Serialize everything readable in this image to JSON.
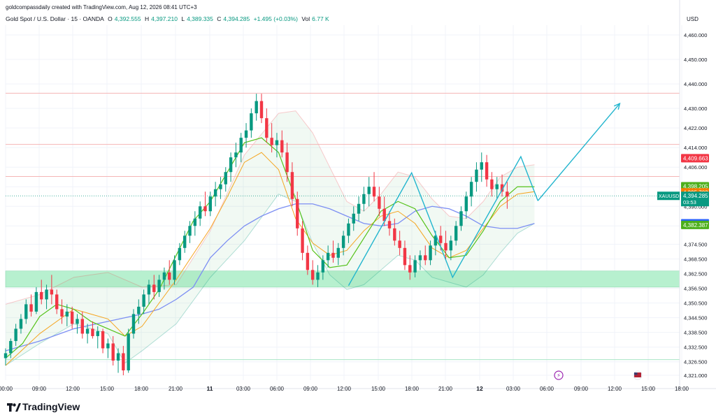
{
  "header": {
    "credit": "goldcompassdaily created with TradingView.com, Aug 12, 2026 08:41 UTC+3",
    "symbol": "Gold Spot / U.S. Dollar · 15 · OANDA",
    "o_label": "O",
    "o_value": "4,392.555",
    "h_label": "H",
    "h_value": "4,397.210",
    "l_label": "L",
    "l_value": "4,389.335",
    "c_label": "C",
    "c_value": "4,394.285",
    "change": "+1.495 (+0.03%)",
    "vol_label": "Vol",
    "vol_value": "6.77 K"
  },
  "brand": {
    "name": "TradingView"
  },
  "colors": {
    "up": "#089981",
    "down": "#f23645",
    "trend": "#22b5ce",
    "ma_blue": "#7d8ff3",
    "ma_green": "#55c21a",
    "ma_orange": "#f5a623",
    "zone": "#b7f0cf",
    "resistance": "#f5b5b5",
    "support": "#a8e6c5"
  },
  "chart_data": {
    "type": "candlestick",
    "currency_label": "USD",
    "yaxis_ticks": [
      "4,460.000",
      "4,450.000",
      "4,440.000",
      "4,430.000",
      "4,422.000",
      "4,414.000",
      "4,406.000",
      "4,398.000",
      "4,390.000",
      "4,382.000",
      "4,374.500",
      "4,368.500",
      "4,362.500",
      "4,356.500",
      "4,350.500",
      "4,344.500",
      "4,338.500",
      "4,332.500",
      "4,326.500",
      "4,321.000"
    ],
    "xaxis_ticks": [
      "00:00",
      "09:00",
      "12:00",
      "15:00",
      "18:00",
      "21:00",
      "11",
      "03:00",
      "06:00",
      "09:00",
      "12:00",
      "15:00",
      "18:00",
      "21:00",
      "12",
      "03:00",
      "06:00",
      "09:00",
      "12:00",
      "15:00",
      "18:00"
    ],
    "ylim": [
      4319,
      4464
    ],
    "price_labels": [
      {
        "text": "4,409.663",
        "value": 4409.663,
        "color": "#f23645"
      },
      {
        "text": "4,398.205",
        "value": 4398.205,
        "color": "#4caf1a"
      },
      {
        "text": "4,395.703",
        "value": 4395.703,
        "color": "#f57c00"
      },
      {
        "text": "4,383.062",
        "value": 4383.062,
        "color": "#2962ff"
      },
      {
        "text": "4,382.387",
        "value": 4382.387,
        "color": "#4caf1a"
      }
    ],
    "current_label": {
      "symbol": "XAUUSD",
      "price": "4,394.285",
      "timer": "03:53",
      "value": 4394.285
    },
    "resistance_lines": [
      4436.2,
      4415.3,
      4402.2
    ],
    "support_line": 4327.4,
    "demand_zone": [
      4357.0,
      4363.6
    ],
    "zigzag": [
      [
        20.1,
        4357.6
      ],
      [
        23.8,
        4403.7
      ],
      [
        26.2,
        4361.0
      ],
      [
        30.2,
        4410.3
      ],
      [
        31.2,
        4392.3
      ]
    ],
    "projection_arrow": [
      [
        31.2,
        4392.3
      ],
      [
        36.0,
        4432.0
      ]
    ],
    "bands_upper": [
      [
        0,
        4350
      ],
      [
        2,
        4354
      ],
      [
        4,
        4361
      ],
      [
        6,
        4363
      ],
      [
        8,
        4357
      ],
      [
        10,
        4358
      ],
      [
        12,
        4380
      ],
      [
        14,
        4411
      ],
      [
        16,
        4428
      ],
      [
        17,
        4429
      ],
      [
        18,
        4420
      ],
      [
        19,
        4406
      ],
      [
        20,
        4392
      ],
      [
        21,
        4388
      ],
      [
        22,
        4395
      ],
      [
        23,
        4404
      ],
      [
        24,
        4402
      ],
      [
        25,
        4393
      ],
      [
        26,
        4386
      ],
      [
        27,
        4385
      ],
      [
        28,
        4392
      ],
      [
        29,
        4402
      ],
      [
        30,
        4406
      ],
      [
        31,
        4407
      ]
    ],
    "bands_lower": [
      [
        0,
        4325
      ],
      [
        2,
        4334
      ],
      [
        4,
        4342
      ],
      [
        6,
        4338
      ],
      [
        7,
        4326
      ],
      [
        8,
        4331
      ],
      [
        10,
        4342
      ],
      [
        12,
        4361
      ],
      [
        14,
        4376
      ],
      [
        16,
        4395
      ],
      [
        17,
        4392
      ],
      [
        18,
        4375
      ],
      [
        19,
        4362
      ],
      [
        20,
        4356
      ],
      [
        21,
        4358
      ],
      [
        22,
        4364
      ],
      [
        23,
        4370
      ],
      [
        24,
        4368
      ],
      [
        25,
        4361
      ],
      [
        26,
        4359
      ],
      [
        27,
        4357
      ],
      [
        28,
        4362
      ],
      [
        29,
        4371
      ],
      [
        30,
        4379
      ],
      [
        31,
        4383
      ]
    ],
    "ma_green": [
      [
        0,
        4328
      ],
      [
        1,
        4334
      ],
      [
        2,
        4345
      ],
      [
        3,
        4350
      ],
      [
        4,
        4348
      ],
      [
        5,
        4343
      ],
      [
        6,
        4340
      ],
      [
        7,
        4337
      ],
      [
        8,
        4346
      ],
      [
        9,
        4356
      ],
      [
        10,
        4370
      ],
      [
        11,
        4384
      ],
      [
        12,
        4392
      ],
      [
        13,
        4404
      ],
      [
        14,
        4416
      ],
      [
        15,
        4418
      ],
      [
        16,
        4412
      ],
      [
        17,
        4393
      ],
      [
        18,
        4372
      ],
      [
        19,
        4365
      ],
      [
        20,
        4366
      ],
      [
        21,
        4377
      ],
      [
        22,
        4388
      ],
      [
        23,
        4392
      ],
      [
        24,
        4389
      ],
      [
        25,
        4378
      ],
      [
        26,
        4369
      ],
      [
        27,
        4370
      ],
      [
        28,
        4380
      ],
      [
        29,
        4392
      ],
      [
        30,
        4398
      ],
      [
        31,
        4398
      ]
    ],
    "ma_orange": [
      [
        0,
        4325
      ],
      [
        2,
        4338
      ],
      [
        4,
        4348
      ],
      [
        6,
        4344
      ],
      [
        7,
        4337
      ],
      [
        8,
        4341
      ],
      [
        10,
        4360
      ],
      [
        12,
        4381
      ],
      [
        13,
        4394
      ],
      [
        14,
        4408
      ],
      [
        15,
        4412
      ],
      [
        16,
        4405
      ],
      [
        17,
        4385
      ],
      [
        18,
        4375
      ],
      [
        19,
        4370
      ],
      [
        20,
        4372
      ],
      [
        21,
        4380
      ],
      [
        22,
        4386
      ],
      [
        23,
        4388
      ],
      [
        24,
        4383
      ],
      [
        25,
        4373
      ],
      [
        26,
        4369
      ],
      [
        27,
        4372
      ],
      [
        28,
        4381
      ],
      [
        29,
        4390
      ],
      [
        30,
        4395
      ],
      [
        31,
        4396
      ]
    ],
    "ma_blue": [
      [
        0,
        4331
      ],
      [
        2,
        4335
      ],
      [
        4,
        4340
      ],
      [
        6,
        4343
      ],
      [
        8,
        4346
      ],
      [
        9,
        4348
      ],
      [
        10,
        4352
      ],
      [
        11,
        4357
      ],
      [
        12,
        4369
      ],
      [
        13,
        4376
      ],
      [
        14,
        4382
      ],
      [
        15,
        4386
      ],
      [
        16,
        4389
      ],
      [
        17,
        4391
      ],
      [
        18,
        4391
      ],
      [
        19,
        4389
      ],
      [
        20,
        4386
      ],
      [
        21,
        4383
      ],
      [
        22,
        4382
      ],
      [
        23,
        4383
      ],
      [
        24,
        4388
      ],
      [
        25,
        4390
      ],
      [
        26,
        4389
      ],
      [
        27,
        4386
      ],
      [
        28,
        4382
      ],
      [
        29,
        4381
      ],
      [
        30,
        4381
      ],
      [
        31,
        4383
      ]
    ],
    "candles": [
      [
        0,
        4328,
        4332,
        4325,
        4330
      ],
      [
        0.3,
        4330,
        4336,
        4328,
        4335
      ],
      [
        0.6,
        4335,
        4342,
        4333,
        4340
      ],
      [
        0.9,
        4340,
        4346,
        4338,
        4344
      ],
      [
        1.2,
        4344,
        4352,
        4342,
        4350
      ],
      [
        1.5,
        4350,
        4354,
        4345,
        4347
      ],
      [
        1.8,
        4347,
        4357,
        4346,
        4355
      ],
      [
        2.1,
        4355,
        4360,
        4350,
        4352
      ],
      [
        2.4,
        4352,
        4358,
        4348,
        4356
      ],
      [
        2.7,
        4356,
        4362,
        4350,
        4354
      ],
      [
        3.0,
        4354,
        4356,
        4346,
        4348
      ],
      [
        3.3,
        4348,
        4352,
        4342,
        4345
      ],
      [
        3.6,
        4345,
        4350,
        4341,
        4347
      ],
      [
        3.9,
        4347,
        4349,
        4340,
        4342
      ],
      [
        4.2,
        4342,
        4346,
        4338,
        4344
      ],
      [
        4.5,
        4344,
        4347,
        4336,
        4338
      ],
      [
        4.8,
        4338,
        4342,
        4334,
        4340
      ],
      [
        5.1,
        4340,
        4343,
        4336,
        4337
      ],
      [
        5.4,
        4337,
        4341,
        4332,
        4339
      ],
      [
        5.7,
        4339,
        4340,
        4330,
        4332
      ],
      [
        6.0,
        4332,
        4336,
        4328,
        4334
      ],
      [
        6.3,
        4334,
        4337,
        4325,
        4327
      ],
      [
        6.6,
        4327,
        4332,
        4322,
        4330
      ],
      [
        6.9,
        4330,
        4333,
        4321,
        4323
      ],
      [
        7.2,
        4323,
        4340,
        4322,
        4338
      ],
      [
        7.5,
        4338,
        4348,
        4336,
        4346
      ],
      [
        7.8,
        4346,
        4352,
        4342,
        4349
      ],
      [
        8.1,
        4349,
        4356,
        4346,
        4354
      ],
      [
        8.4,
        4354,
        4360,
        4350,
        4358
      ],
      [
        8.7,
        4358,
        4362,
        4352,
        4355
      ],
      [
        9.0,
        4355,
        4362,
        4353,
        4360
      ],
      [
        9.3,
        4360,
        4365,
        4356,
        4363
      ],
      [
        9.6,
        4363,
        4368,
        4358,
        4360
      ],
      [
        9.9,
        4360,
        4370,
        4358,
        4368
      ],
      [
        10.2,
        4368,
        4375,
        4366,
        4373
      ],
      [
        10.5,
        4373,
        4380,
        4371,
        4378
      ],
      [
        10.8,
        4378,
        4384,
        4375,
        4382
      ],
      [
        11.1,
        4382,
        4388,
        4378,
        4385
      ],
      [
        11.4,
        4385,
        4392,
        4382,
        4390
      ],
      [
        11.7,
        4390,
        4396,
        4386,
        4388
      ],
      [
        12.0,
        4388,
        4396,
        4386,
        4394
      ],
      [
        12.3,
        4394,
        4400,
        4390,
        4397
      ],
      [
        12.6,
        4397,
        4402,
        4393,
        4399
      ],
      [
        12.9,
        4399,
        4406,
        4396,
        4404
      ],
      [
        13.2,
        4404,
        4412,
        4400,
        4410
      ],
      [
        13.5,
        4410,
        4416,
        4406,
        4412
      ],
      [
        13.8,
        4412,
        4420,
        4408,
        4418
      ],
      [
        14.1,
        4418,
        4424,
        4414,
        4421
      ],
      [
        14.4,
        4421,
        4430,
        4418,
        4428
      ],
      [
        14.7,
        4428,
        4436,
        4425,
        4433
      ],
      [
        15.0,
        4433,
        4436,
        4424,
        4426
      ],
      [
        15.3,
        4426,
        4430,
        4416,
        4418
      ],
      [
        15.6,
        4418,
        4424,
        4412,
        4415
      ],
      [
        15.9,
        4415,
        4420,
        4410,
        4417
      ],
      [
        16.2,
        4417,
        4421,
        4410,
        4412
      ],
      [
        16.5,
        4412,
        4416,
        4400,
        4404
      ],
      [
        16.8,
        4404,
        4408,
        4390,
        4393
      ],
      [
        17.1,
        4393,
        4396,
        4378,
        4381
      ],
      [
        17.4,
        4381,
        4384,
        4368,
        4371
      ],
      [
        17.7,
        4371,
        4374,
        4362,
        4364
      ],
      [
        18.0,
        4364,
        4368,
        4358,
        4360
      ],
      [
        18.3,
        4360,
        4366,
        4357,
        4363
      ],
      [
        18.6,
        4363,
        4370,
        4360,
        4368
      ],
      [
        18.9,
        4368,
        4374,
        4365,
        4371
      ],
      [
        19.2,
        4371,
        4376,
        4367,
        4369
      ],
      [
        19.5,
        4369,
        4375,
        4366,
        4373
      ],
      [
        19.8,
        4373,
        4380,
        4370,
        4378
      ],
      [
        20.1,
        4378,
        4385,
        4375,
        4383
      ],
      [
        20.4,
        4383,
        4390,
        4380,
        4387
      ],
      [
        20.7,
        4387,
        4394,
        4384,
        4391
      ],
      [
        21.0,
        4391,
        4398,
        4388,
        4395
      ],
      [
        21.3,
        4395,
        4402,
        4390,
        4398
      ],
      [
        21.6,
        4398,
        4404,
        4392,
        4394
      ],
      [
        21.9,
        4394,
        4398,
        4386,
        4389
      ],
      [
        22.2,
        4389,
        4394,
        4382,
        4384
      ],
      [
        22.5,
        4384,
        4388,
        4378,
        4381
      ],
      [
        22.8,
        4381,
        4385,
        4374,
        4376
      ],
      [
        23.1,
        4376,
        4380,
        4370,
        4373
      ],
      [
        23.4,
        4373,
        4376,
        4364,
        4366
      ],
      [
        23.7,
        4366,
        4370,
        4360,
        4363
      ],
      [
        24.0,
        4363,
        4370,
        4361,
        4368
      ],
      [
        24.3,
        4368,
        4372,
        4364,
        4370
      ],
      [
        24.6,
        4370,
        4374,
        4366,
        4368
      ],
      [
        24.9,
        4368,
        4376,
        4366,
        4374
      ],
      [
        25.2,
        4374,
        4380,
        4370,
        4378
      ],
      [
        25.5,
        4378,
        4382,
        4372,
        4375
      ],
      [
        25.8,
        4375,
        4380,
        4368,
        4372
      ],
      [
        26.1,
        4372,
        4378,
        4368,
        4376
      ],
      [
        26.4,
        4376,
        4384,
        4374,
        4382
      ],
      [
        26.7,
        4382,
        4390,
        4380,
        4388
      ],
      [
        27.0,
        4388,
        4396,
        4385,
        4394
      ],
      [
        27.3,
        4394,
        4402,
        4390,
        4400
      ],
      [
        27.6,
        4400,
        4408,
        4396,
        4405
      ],
      [
        27.9,
        4405,
        4412,
        4400,
        4408
      ],
      [
        28.2,
        4408,
        4411,
        4398,
        4401
      ],
      [
        28.5,
        4401,
        4404,
        4394,
        4397
      ],
      [
        28.8,
        4397,
        4402,
        4393,
        4399
      ],
      [
        29.1,
        4399,
        4403,
        4394,
        4396
      ],
      [
        29.4,
        4396,
        4400,
        4389,
        4394
      ]
    ]
  }
}
